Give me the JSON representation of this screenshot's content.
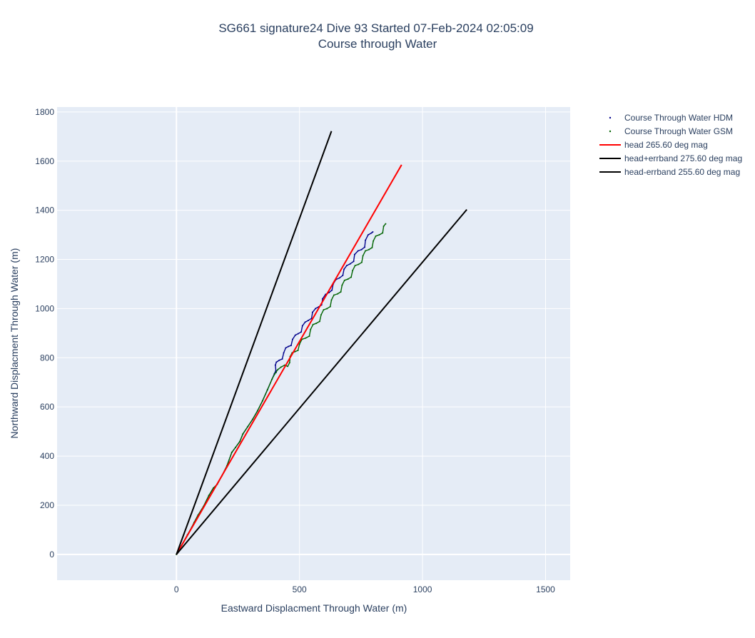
{
  "chart_data": {
    "type": "line",
    "title_line1": "SG661 signature24 Dive 93 Started 07-Feb-2024 02:05:09",
    "title_line2": "Course through Water",
    "xlabel": "Eastward Displacment Through Water (m)",
    "ylabel": "Northward Displacment Through Water (m)",
    "xlim": [
      -485,
      1600
    ],
    "ylim": [
      -105,
      1820
    ],
    "xticks": [
      0,
      500,
      1000,
      1500
    ],
    "yticks": [
      0,
      200,
      400,
      600,
      800,
      1000,
      1200,
      1400,
      1600,
      1800
    ],
    "grid": true,
    "legend_position": "top-right",
    "colors": {
      "plot_background": "#e5ecf6",
      "grid": "#ffffff",
      "hdm": "#00008b",
      "gsm": "#006400",
      "head": "#ff0000",
      "errband": "#000000"
    },
    "series": [
      {
        "name": "Course Through Water HDM",
        "mode": "markers",
        "color": "#00008b",
        "x": [
          0,
          20,
          45,
          62,
          72,
          88,
          110,
          132,
          150,
          166,
          185,
          205,
          225,
          240,
          258,
          270,
          290,
          310,
          330,
          350,
          370,
          388,
          398,
          404,
          405,
          402,
          406,
          418,
          430,
          436,
          444,
          455,
          466,
          472,
          483,
          495,
          507,
          512,
          523,
          536,
          549,
          553,
          565,
          578,
          590,
          594,
          606,
          620,
          632,
          637,
          648,
          663,
          676,
          681,
          692,
          706,
          720,
          724,
          738,
          752,
          765,
          768,
          779,
          793,
          798
        ],
        "y": [
          0,
          35,
          80,
          110,
          130,
          160,
          195,
          240,
          270,
          285,
          320,
          360,
          415,
          435,
          460,
          490,
          520,
          550,
          585,
          625,
          670,
          712,
          735,
          748,
          740,
          770,
          782,
          790,
          795,
          820,
          840,
          846,
          850,
          875,
          892,
          898,
          905,
          930,
          945,
          952,
          960,
          985,
          1000,
          1007,
          1015,
          1040,
          1058,
          1065,
          1075,
          1100,
          1118,
          1125,
          1135,
          1160,
          1175,
          1182,
          1192,
          1220,
          1235,
          1240,
          1250,
          1278,
          1300,
          1308,
          1312
        ]
      },
      {
        "name": "Course Through Water GSM",
        "mode": "markers",
        "color": "#006400",
        "x": [
          0,
          20,
          45,
          62,
          72,
          88,
          110,
          132,
          150,
          166,
          185,
          205,
          225,
          240,
          258,
          270,
          290,
          310,
          330,
          350,
          370,
          388,
          400,
          412,
          425,
          440,
          452,
          460,
          462,
          470,
          482,
          494,
          500,
          510,
          525,
          540,
          545,
          555,
          568,
          582,
          588,
          598,
          612,
          625,
          630,
          640,
          655,
          668,
          673,
          683,
          697,
          710,
          716,
          726,
          740,
          753,
          758,
          768,
          782,
          795,
          800,
          810,
          824,
          838,
          842,
          850
        ],
        "y": [
          0,
          35,
          80,
          110,
          130,
          160,
          195,
          240,
          270,
          285,
          320,
          360,
          415,
          435,
          460,
          490,
          520,
          550,
          585,
          625,
          670,
          712,
          735,
          752,
          762,
          770,
          765,
          780,
          805,
          820,
          825,
          830,
          855,
          875,
          880,
          888,
          915,
          935,
          940,
          948,
          975,
          995,
          1000,
          1008,
          1035,
          1055,
          1060,
          1068,
          1095,
          1115,
          1120,
          1128,
          1155,
          1175,
          1180,
          1188,
          1215,
          1235,
          1240,
          1248,
          1275,
          1295,
          1300,
          1308,
          1335,
          1345
        ]
      },
      {
        "name": "head 265.60 deg mag",
        "mode": "line",
        "color": "#ff0000",
        "x": [
          0,
          915
        ],
        "y": [
          0,
          1585
        ]
      },
      {
        "name": "head+errband 275.60 deg mag",
        "mode": "line",
        "color": "#000000",
        "x": [
          0,
          630
        ],
        "y": [
          0,
          1722
        ]
      },
      {
        "name": "head-errband 255.60 deg mag",
        "mode": "line",
        "color": "#000000",
        "x": [
          0,
          1180
        ],
        "y": [
          0,
          1403
        ]
      }
    ]
  }
}
